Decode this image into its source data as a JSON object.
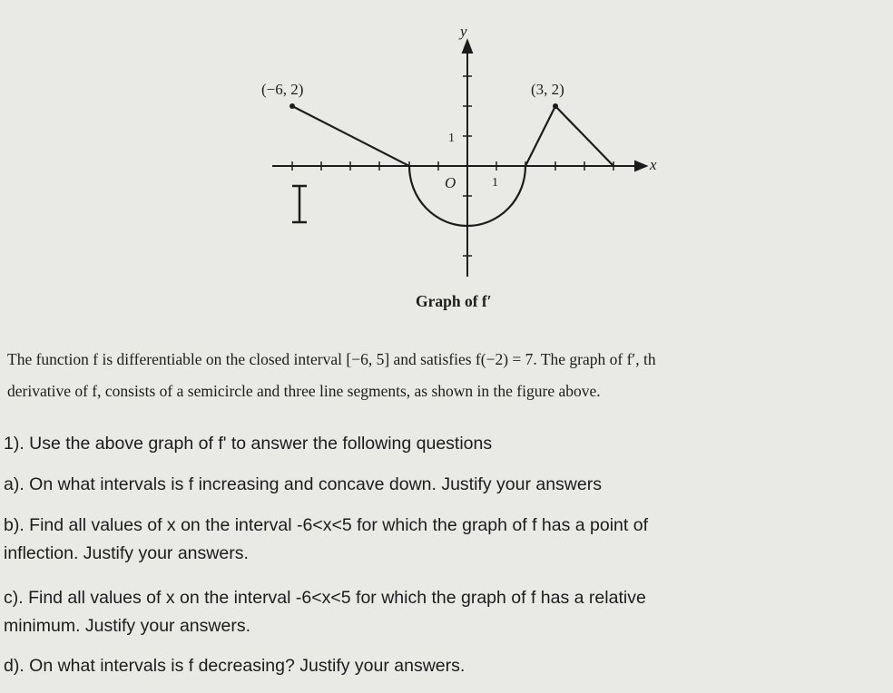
{
  "figure": {
    "y_label": "y",
    "x_label": "x",
    "point_left": "(−6, 2)",
    "point_right": "(3, 2)",
    "y_tick": "1",
    "origin": "O",
    "x_tick": "1",
    "marker": "I",
    "caption": "Graph of f′"
  },
  "intro": {
    "line1": "The function f is differentiable on the closed interval [−6, 5] and satisfies f(−2) = 7. The graph of f′, th",
    "line2": "derivative of f, consists of a semicircle and three line segments, as shown in the figure above."
  },
  "questions": {
    "q1": "1). Use the above graph of f' to answer the following questions",
    "a": "a). On what intervals is f increasing and concave down. Justify your answers",
    "b1": "b). Find all values of x on the interval -6<x<5 for which the graph of f has a point of",
    "b2": "inflection. Justify your answers.",
    "c1": "c). Find all values of x on the interval -6<x<5 for which the graph of f has a relative",
    "c2": "minimum. Justify your answers.",
    "d": "d). On what intervals is f decreasing? Justify your answers."
  }
}
